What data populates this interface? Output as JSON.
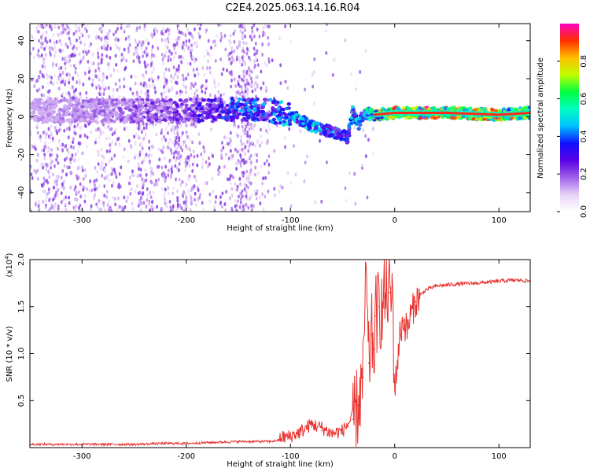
{
  "figure": {
    "title": "C2E4.2025.063.14.16.R04"
  },
  "chart_data": [
    {
      "type": "heatmap",
      "title": "",
      "xlabel": "Height of straight line (km)",
      "ylabel": "Frequency (Hz)",
      "xlim": [
        -350,
        130
      ],
      "ylim": [
        -50,
        49
      ],
      "xticks": [
        "-300",
        "-200",
        "-100",
        "0",
        "100"
      ],
      "yticks": [
        "-40",
        "-20",
        "0",
        "20",
        "40"
      ],
      "xtick_values": [
        -300,
        -200,
        -100,
        0,
        100
      ],
      "ytick_values": [
        -40,
        -20,
        0,
        20,
        40
      ],
      "colorbar": {
        "label": "Normalized spectral amplitude",
        "range": [
          0,
          1
        ],
        "ticks": [
          "0.0",
          "0.2",
          "0.4",
          "0.6",
          "0.8"
        ],
        "tick_values": [
          0.0,
          0.2,
          0.4,
          0.6,
          0.8
        ],
        "colormap": [
          "#ffffff",
          "#e6d2f7",
          "#a060e8",
          "#5a00e6",
          "#1010ff",
          "#00c0ff",
          "#00ffc0",
          "#00ff40",
          "#c0ff00",
          "#ffc000",
          "#ff3000",
          "#ff00c0"
        ]
      },
      "ridge": {
        "x": [
          -350,
          -300,
          -250,
          -200,
          -150,
          -120,
          -100,
          -80,
          -60,
          -45,
          -40,
          -35,
          -30,
          -20,
          0,
          50,
          100,
          130
        ],
        "y": [
          3,
          3,
          3,
          3,
          4,
          3,
          1,
          -5,
          -8,
          -11,
          3,
          -5,
          2,
          1,
          2,
          2,
          1,
          2
        ],
        "amplitude": [
          0.15,
          0.2,
          0.25,
          0.3,
          0.45,
          0.5,
          0.55,
          0.55,
          0.5,
          0.45,
          0.6,
          0.5,
          0.6,
          0.8,
          0.95,
          1.0,
          0.9,
          0.85
        ]
      }
    },
    {
      "type": "line",
      "title": "",
      "xlabel": "Height of straight line (km)",
      "ylabel": "SNR (10 * v/v)",
      "scale_label_base": "(x10",
      "scale_label_exp": "4",
      "scale_label_close": ")",
      "xlim": [
        -350,
        130
      ],
      "ylim": [
        0,
        2.0
      ],
      "y_scale": 10000,
      "xticks": [
        "-300",
        "-200",
        "-100",
        "0",
        "100"
      ],
      "yticks": [
        "0.5",
        "1.0",
        "1.5",
        "2.0"
      ],
      "xtick_values": [
        -300,
        -200,
        -100,
        0,
        100
      ],
      "ytick_values": [
        0.5,
        1.0,
        1.5,
        2.0
      ],
      "series": [
        {
          "color": "#e8322f",
          "x": [
            -350,
            -300,
            -250,
            -220,
            -200,
            -150,
            -120,
            -100,
            -90,
            -80,
            -70,
            -60,
            -50,
            -45,
            -40,
            -35,
            -30,
            -28,
            -25,
            -22,
            -20,
            -18,
            -15,
            -12,
            -10,
            -8,
            -5,
            -2,
            0,
            5,
            8,
            10,
            12,
            15,
            20,
            25,
            30,
            40,
            50,
            60,
            80,
            90,
            100,
            110,
            120,
            130
          ],
          "y": [
            0.03,
            0.03,
            0.03,
            0.04,
            0.04,
            0.06,
            0.06,
            0.09,
            0.14,
            0.22,
            0.18,
            0.12,
            0.15,
            0.22,
            0.3,
            0.45,
            0.75,
            1.9,
            0.9,
            1.2,
            1.05,
            1.4,
            1.5,
            1.45,
            1.6,
            1.65,
            1.65,
            1.6,
            0.6,
            1.2,
            1.35,
            1.3,
            1.25,
            1.4,
            1.55,
            1.63,
            1.68,
            1.72,
            1.73,
            1.74,
            1.75,
            1.76,
            1.77,
            1.78,
            1.78,
            1.77
          ]
        }
      ]
    }
  ]
}
